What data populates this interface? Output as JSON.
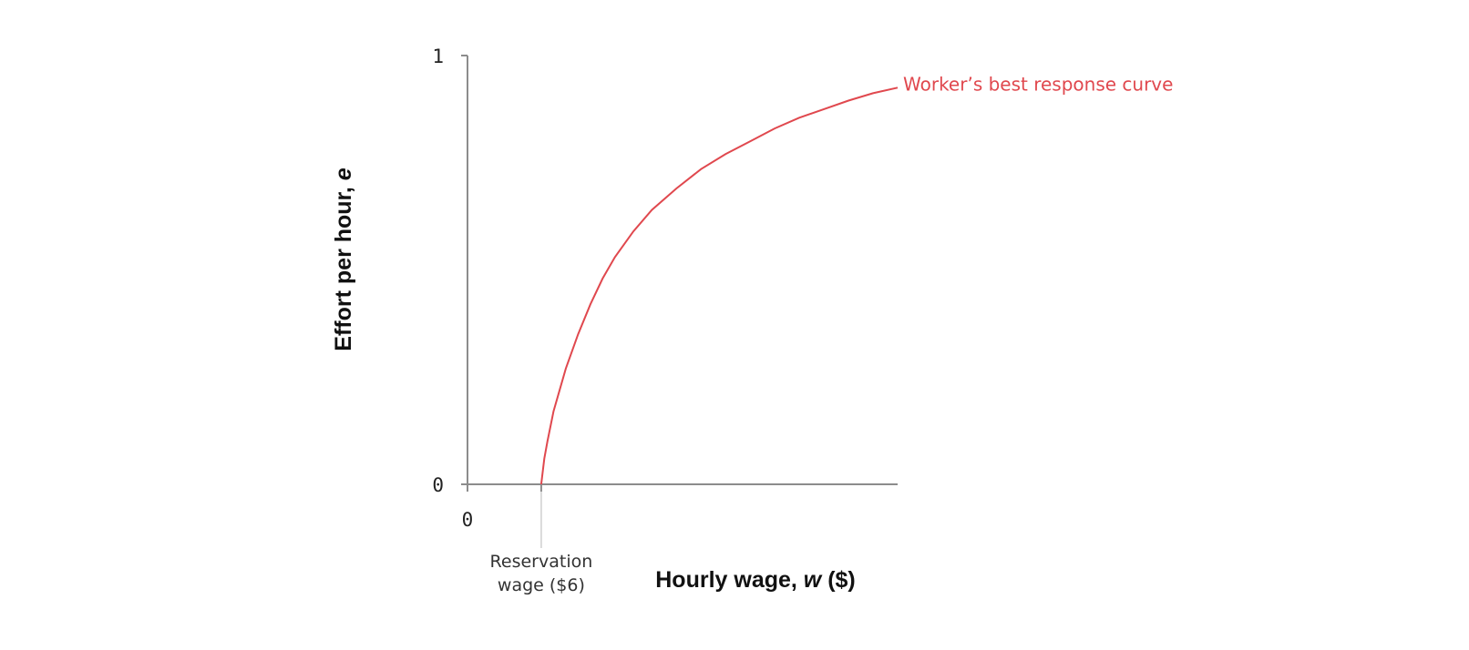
{
  "chart_data": {
    "type": "line",
    "title": "",
    "xlabel": {
      "text": "Hourly wage, ",
      "var": "w",
      "unit": " ($)"
    },
    "ylabel": {
      "text": "Effort per hour, ",
      "var": "e"
    },
    "xlim": [
      0,
      35
    ],
    "ylim": [
      0,
      1
    ],
    "x_tick_labels": [
      "0"
    ],
    "y_tick_labels": [
      "0",
      "1"
    ],
    "grid": false,
    "series": [
      {
        "name": "Worker’s best response curve",
        "color": "#e0484e",
        "x": [
          6,
          6.25,
          6.5,
          7,
          8,
          9,
          10,
          11,
          12,
          13.5,
          15,
          17,
          19,
          21,
          23,
          25,
          27,
          29,
          31,
          33,
          35
        ],
        "y": [
          0,
          0.06,
          0.1,
          0.17,
          0.27,
          0.35,
          0.42,
          0.48,
          0.53,
          0.59,
          0.64,
          0.69,
          0.735,
          0.77,
          0.8,
          0.83,
          0.855,
          0.875,
          0.895,
          0.912,
          0.925
        ]
      }
    ],
    "annotations": [
      {
        "x": 6,
        "lines": [
          "Reservation",
          "wage ($6)"
        ]
      }
    ],
    "colors": {
      "axis": "#8c8c8c",
      "guide": "#cfcfcf"
    }
  }
}
